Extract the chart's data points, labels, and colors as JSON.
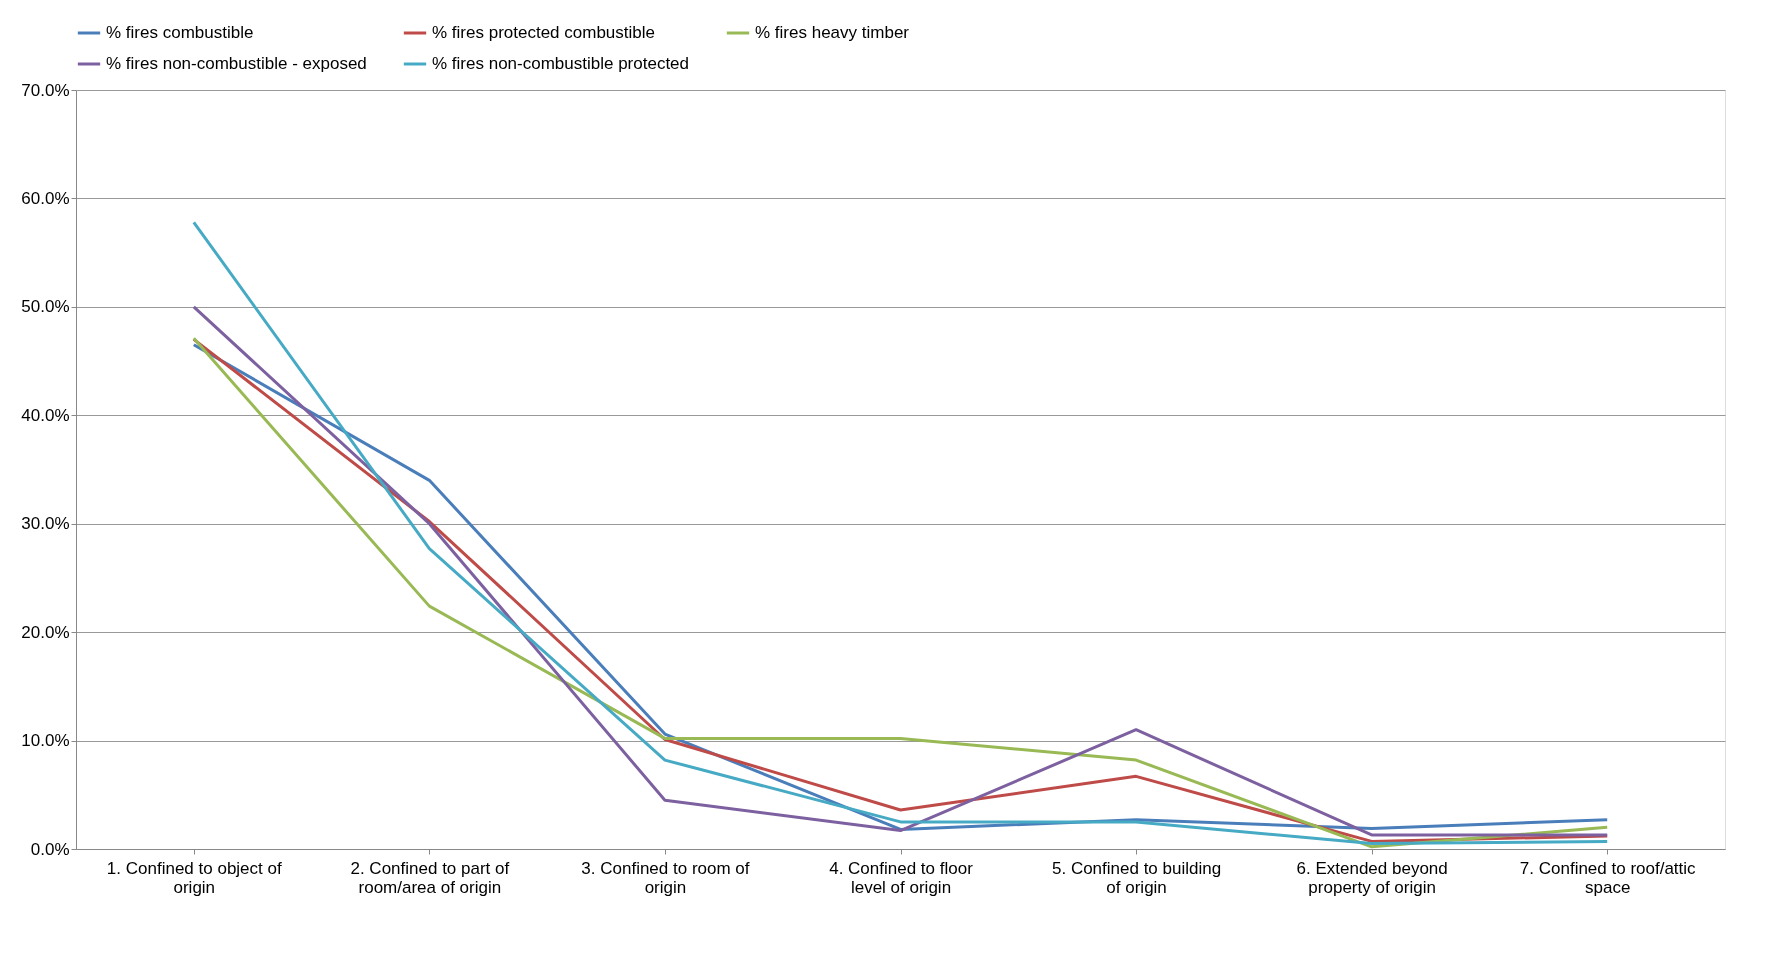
{
  "chart_data": {
    "type": "line",
    "categories": [
      "1. Confined to object of origin",
      "2. Confined to part of room/area of origin",
      "3. Confined to room of origin",
      "4. Confined to floor level of origin",
      "5. Confined to building of origin",
      "6. Extended beyond property of origin",
      "7. Confined to roof/attic space"
    ],
    "series": [
      {
        "name": "% fires combustible",
        "color": "#4a7ebb",
        "values": [
          46.5,
          34.0,
          10.6,
          1.8,
          2.7,
          1.9,
          2.7
        ]
      },
      {
        "name": "% fires protected combustible",
        "color": "#be4b48",
        "values": [
          47.0,
          30.2,
          10.1,
          3.6,
          6.7,
          0.7,
          1.2
        ]
      },
      {
        "name": "% fires heavy timber",
        "color": "#98b954",
        "values": [
          47.1,
          22.4,
          10.2,
          10.2,
          8.2,
          0.2,
          2.0
        ]
      },
      {
        "name": "% fires non-combustible - exposed",
        "color": "#7d60a0",
        "values": [
          50.0,
          30.0,
          4.5,
          1.7,
          11.0,
          1.3,
          1.3
        ]
      },
      {
        "name": "% fires non-combustible protected",
        "color": "#46aac5",
        "values": [
          57.8,
          27.7,
          8.2,
          2.5,
          2.5,
          0.5,
          0.7
        ]
      }
    ],
    "ylim": [
      0,
      70
    ],
    "yticks": [
      {
        "value": 0,
        "label": "0.0%"
      },
      {
        "value": 10,
        "label": "10.0%"
      },
      {
        "value": 20,
        "label": "20.0%"
      },
      {
        "value": 30,
        "label": "30.0%"
      },
      {
        "value": 40,
        "label": "40.0%"
      },
      {
        "value": 50,
        "label": "50.0%"
      },
      {
        "value": 60,
        "label": "60.0%"
      },
      {
        "value": 70,
        "label": "70.0%"
      }
    ],
    "grid": "y",
    "legend": "top",
    "marker": "none",
    "line_style": "solid"
  }
}
